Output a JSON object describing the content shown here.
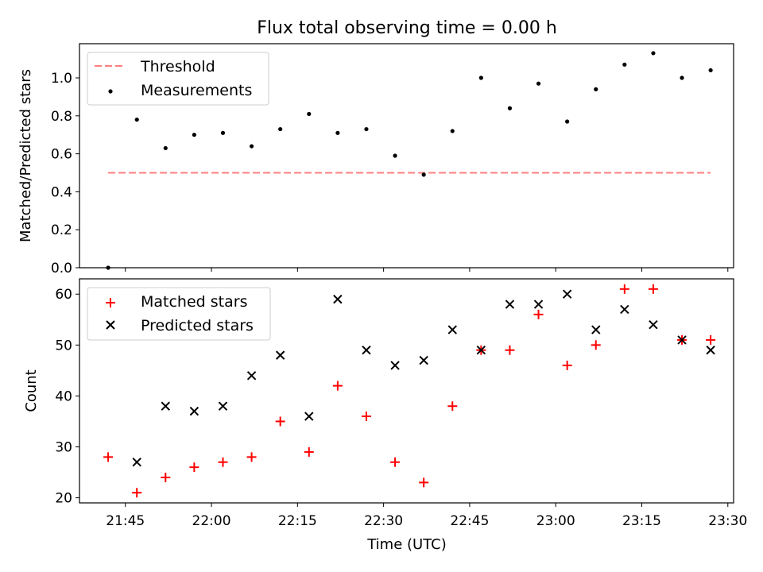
{
  "title": "Flux total observing time = 0.00 h",
  "chart_data": [
    {
      "type": "scatter",
      "ylabel": "Matched/Predicted stars",
      "ylim": [
        0,
        1.18
      ],
      "yticks": [
        0.0,
        0.2,
        0.4,
        0.6,
        0.8,
        1.0
      ],
      "ytick_labels": [
        "0.0",
        "0.2",
        "0.4",
        "0.6",
        "0.8",
        "1.0"
      ],
      "legend": {
        "placement": "upper-left",
        "entries": [
          "Threshold",
          "Measurements"
        ]
      },
      "series": [
        {
          "name": "Threshold",
          "style": "dashed-line",
          "color": "#ff7f7f",
          "x": [
            "21:42",
            "23:27"
          ],
          "y": [
            0.5,
            0.5
          ]
        },
        {
          "name": "Measurements",
          "style": "dot",
          "color": "#000000",
          "x": [
            "21:42",
            "21:47",
            "21:52",
            "21:57",
            "22:02",
            "22:07",
            "22:12",
            "22:17",
            "22:22",
            "22:27",
            "22:32",
            "22:37",
            "22:42",
            "22:47",
            "22:52",
            "22:57",
            "23:02",
            "23:07",
            "23:12",
            "23:17",
            "23:22",
            "23:27"
          ],
          "y": [
            0.0,
            0.78,
            0.63,
            0.7,
            0.71,
            0.64,
            0.73,
            0.81,
            0.71,
            0.73,
            0.59,
            0.49,
            0.72,
            1.0,
            0.84,
            0.97,
            0.77,
            0.94,
            1.07,
            1.13,
            1.0,
            1.04
          ]
        }
      ]
    },
    {
      "type": "scatter",
      "xlabel": "Time (UTC)",
      "ylabel": "Count",
      "ylim": [
        19,
        63
      ],
      "yticks": [
        20,
        30,
        40,
        50,
        60
      ],
      "ytick_labels": [
        "20",
        "30",
        "40",
        "50",
        "60"
      ],
      "xlim": [
        "21:37",
        "23:31"
      ],
      "xticks": [
        "21:45",
        "22:00",
        "22:15",
        "22:30",
        "22:45",
        "23:00",
        "23:15",
        "23:30"
      ],
      "legend": {
        "placement": "upper-left",
        "entries": [
          "Matched stars",
          "Predicted stars"
        ]
      },
      "series": [
        {
          "name": "Matched stars",
          "marker": "plus",
          "color": "#ff0000",
          "x": [
            "21:42",
            "21:47",
            "21:52",
            "21:57",
            "22:02",
            "22:07",
            "22:12",
            "22:17",
            "22:22",
            "22:27",
            "22:32",
            "22:37",
            "22:42",
            "22:47",
            "22:52",
            "22:57",
            "23:02",
            "23:07",
            "23:12",
            "23:17",
            "23:22",
            "23:27"
          ],
          "y": [
            28,
            21,
            24,
            26,
            27,
            28,
            35,
            29,
            42,
            36,
            27,
            23,
            38,
            49,
            49,
            56,
            46,
            50,
            61,
            61,
            51,
            51
          ]
        },
        {
          "name": "Predicted stars",
          "marker": "x",
          "color": "#000000",
          "x": [
            "21:47",
            "21:52",
            "21:57",
            "22:02",
            "22:07",
            "22:12",
            "22:17",
            "22:22",
            "22:27",
            "22:32",
            "22:37",
            "22:42",
            "22:47",
            "22:52",
            "22:57",
            "23:02",
            "23:07",
            "23:12",
            "23:17",
            "23:22",
            "23:27"
          ],
          "y": [
            27,
            38,
            37,
            38,
            44,
            48,
            36,
            59,
            49,
            46,
            47,
            53,
            49,
            58,
            58,
            60,
            53,
            57,
            54,
            51,
            49
          ]
        }
      ]
    }
  ]
}
